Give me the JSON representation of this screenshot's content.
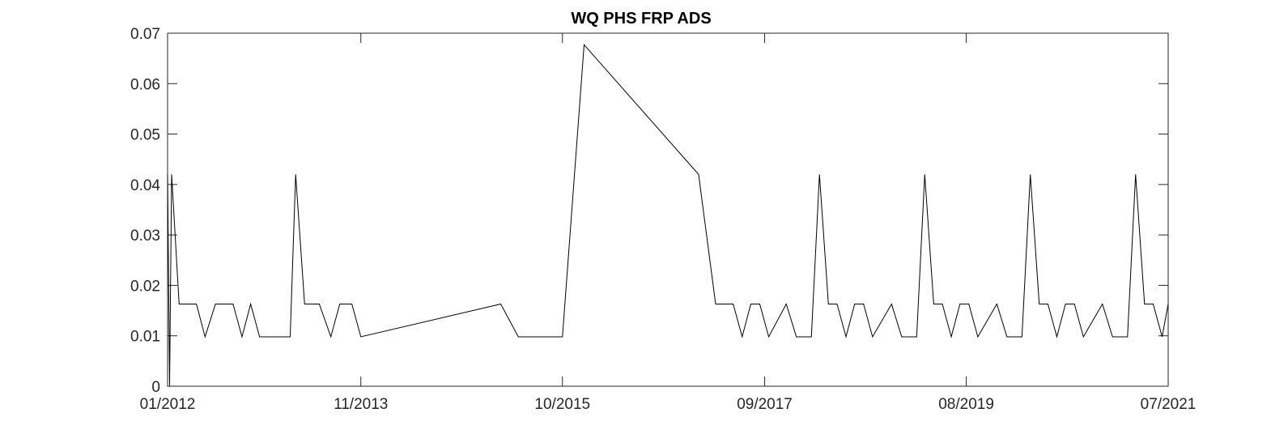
{
  "chart_data": {
    "type": "line",
    "title": "WQ PHS FRP ADS",
    "xlabel": "",
    "ylabel": "",
    "x_tick_labels": [
      "01/2012",
      "11/2013",
      "10/2015",
      "09/2017",
      "08/2019",
      "07/2021"
    ],
    "y_tick_labels": [
      "0",
      "0.01",
      "0.02",
      "0.03",
      "0.04",
      "0.05",
      "0.06",
      "0.07"
    ],
    "xlim": [
      "2012-01-01",
      "2021-07-01"
    ],
    "ylim": [
      0,
      0.07
    ],
    "grid": false,
    "series": [
      {
        "color": "#000000",
        "x": [
          "2012-01-01",
          "2012-01-08",
          "2012-01-15",
          "2012-02-10",
          "2012-04-10",
          "2012-05-10",
          "2012-06-15",
          "2012-08-15",
          "2012-09-15",
          "2012-10-15",
          "2012-11-15",
          "2013-03-01",
          "2013-03-20",
          "2013-04-20",
          "2013-06-10",
          "2013-07-20",
          "2013-08-20",
          "2013-10-01",
          "2013-11-01",
          "2015-03-01",
          "2015-05-01",
          "2015-07-15",
          "2015-10-01",
          "2015-12-15",
          "2017-01-15",
          "2017-03-15",
          "2017-05-15",
          "2017-06-15",
          "2017-07-15",
          "2017-08-15",
          "2017-09-15",
          "2017-11-15",
          "2017-12-20",
          "2018-01-10",
          "2018-02-10",
          "2018-03-10",
          "2018-04-10",
          "2018-05-10",
          "2018-06-10",
          "2018-07-10",
          "2018-08-10",
          "2018-09-10",
          "2018-11-15",
          "2018-12-20",
          "2019-01-10",
          "2019-02-10",
          "2019-03-10",
          "2019-04-10",
          "2019-05-10",
          "2019-06-10",
          "2019-07-10",
          "2019-08-10",
          "2019-09-10",
          "2019-11-15",
          "2019-12-20",
          "2020-01-10",
          "2020-02-10",
          "2020-03-10",
          "2020-04-10",
          "2020-05-10",
          "2020-06-10",
          "2020-07-10",
          "2020-08-10",
          "2020-09-10",
          "2020-11-15",
          "2020-12-20",
          "2021-01-10",
          "2021-02-10",
          "2021-03-10",
          "2021-04-10",
          "2021-05-10",
          "2021-06-10",
          "2021-07-01"
        ],
        "y": [
          0.042,
          0.0,
          0.042,
          0.0163,
          0.0163,
          0.0098,
          0.0163,
          0.0163,
          0.0098,
          0.0163,
          0.0098,
          0.0098,
          0.042,
          0.0163,
          0.0163,
          0.0098,
          0.0163,
          0.0163,
          0.0098,
          0.0163,
          0.0098,
          0.0098,
          0.0098,
          0.0677,
          0.042,
          0.0163,
          0.0163,
          0.0098,
          0.0163,
          0.0163,
          0.0098,
          0.0163,
          0.0098,
          0.0098,
          0.0098,
          0.042,
          0.0163,
          0.0163,
          0.0098,
          0.0163,
          0.0163,
          0.0098,
          0.0163,
          0.0098,
          0.0098,
          0.0098,
          0.042,
          0.0163,
          0.0163,
          0.0098,
          0.0163,
          0.0163,
          0.0098,
          0.0163,
          0.0098,
          0.0098,
          0.0098,
          0.042,
          0.0163,
          0.0163,
          0.0098,
          0.0163,
          0.0163,
          0.0098,
          0.0163,
          0.0098,
          0.0098,
          0.0098,
          0.042,
          0.0163,
          0.0163,
          0.0098,
          0.0163
        ]
      }
    ]
  }
}
